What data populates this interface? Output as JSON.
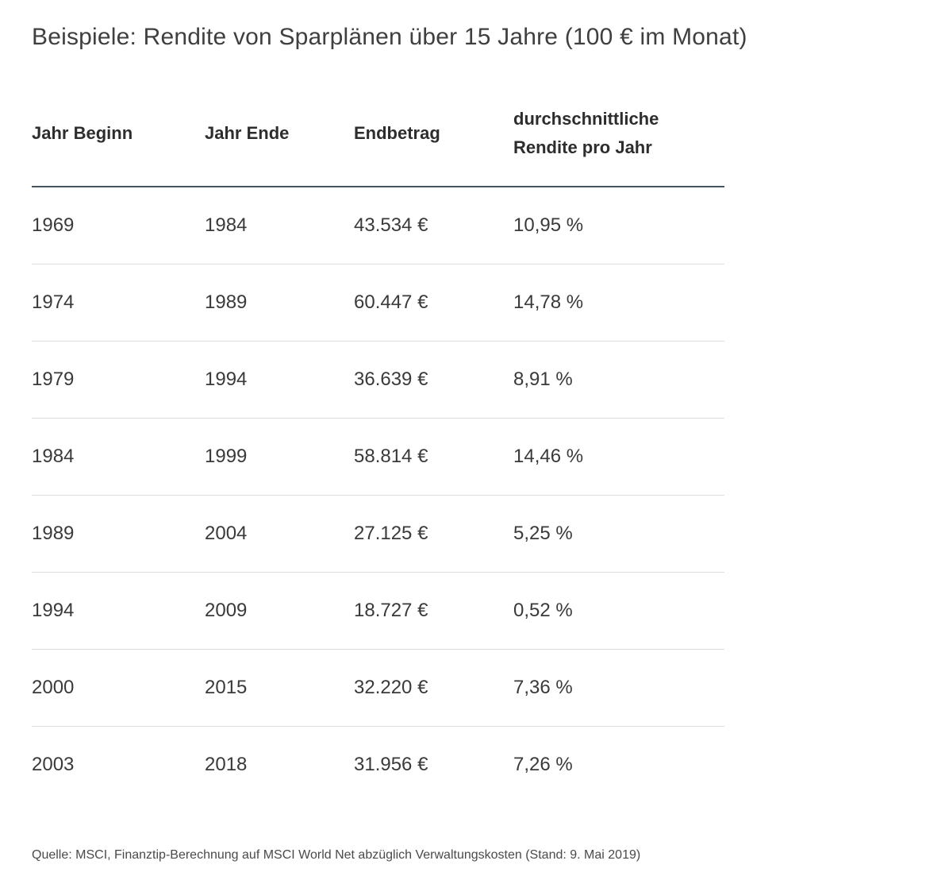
{
  "page": {
    "title": "Beispiele: Rendite von Sparplänen über 15 Jahre (100 € im Monat)",
    "source_note": "Quelle: MSCI, Finanztip-Berechnung auf MSCI World Net abzüglich Verwaltungskosten (Stand: 9. Mai 2019)"
  },
  "table": {
    "columns": [
      "Jahr Beginn",
      "Jahr Ende",
      "Endbetrag",
      "durchschnittliche Rendite pro Jahr"
    ],
    "rows": [
      [
        "1969",
        "1984",
        "43.534 €",
        "10,95 %"
      ],
      [
        "1974",
        "1989",
        "60.447 €",
        "14,78 %"
      ],
      [
        "1979",
        "1994",
        "36.639 €",
        "8,91 %"
      ],
      [
        "1984",
        "1999",
        "58.814 €",
        "14,46 %"
      ],
      [
        "1989",
        "2004",
        "27.125 €",
        "5,25 %"
      ],
      [
        "1994",
        "2009",
        "18.727 €",
        "0,52 %"
      ],
      [
        "2000",
        "2015",
        "32.220 €",
        "7,36 %"
      ],
      [
        "2003",
        "2018",
        "31.956 €",
        "7,26 %"
      ]
    ]
  },
  "chart_data": {
    "type": "table",
    "title": "Beispiele: Rendite von Sparplänen über 15 Jahre (100 € im Monat)",
    "columns": [
      "Jahr Beginn",
      "Jahr Ende",
      "Endbetrag",
      "durchschnittliche Rendite pro Jahr"
    ],
    "rows": [
      {
        "jahr_beginn": 1969,
        "jahr_ende": 1984,
        "endbetrag_eur": 43534,
        "rendite_pro_jahr_pct": 10.95
      },
      {
        "jahr_beginn": 1974,
        "jahr_ende": 1989,
        "endbetrag_eur": 60447,
        "rendite_pro_jahr_pct": 14.78
      },
      {
        "jahr_beginn": 1979,
        "jahr_ende": 1994,
        "endbetrag_eur": 36639,
        "rendite_pro_jahr_pct": 8.91
      },
      {
        "jahr_beginn": 1984,
        "jahr_ende": 1999,
        "endbetrag_eur": 58814,
        "rendite_pro_jahr_pct": 14.46
      },
      {
        "jahr_beginn": 1989,
        "jahr_ende": 2004,
        "endbetrag_eur": 27125,
        "rendite_pro_jahr_pct": 5.25
      },
      {
        "jahr_beginn": 1994,
        "jahr_ende": 2009,
        "endbetrag_eur": 18727,
        "rendite_pro_jahr_pct": 0.52
      },
      {
        "jahr_beginn": 2000,
        "jahr_ende": 2015,
        "endbetrag_eur": 32220,
        "rendite_pro_jahr_pct": 7.36
      },
      {
        "jahr_beginn": 2003,
        "jahr_ende": 2018,
        "endbetrag_eur": 31956,
        "rendite_pro_jahr_pct": 7.26
      }
    ],
    "source": "Quelle: MSCI, Finanztip-Berechnung auf MSCI World Net abzüglich Verwaltungskosten (Stand: 9. Mai 2019)"
  },
  "colors": {
    "header_rule": "#47545e",
    "row_divider": "#dddddd",
    "heading_text": "#2d2d2d",
    "body_text": "#3a3a3a",
    "title_text": "#3f3f3f",
    "source_text": "#4a4a4a",
    "background": "#ffffff"
  }
}
